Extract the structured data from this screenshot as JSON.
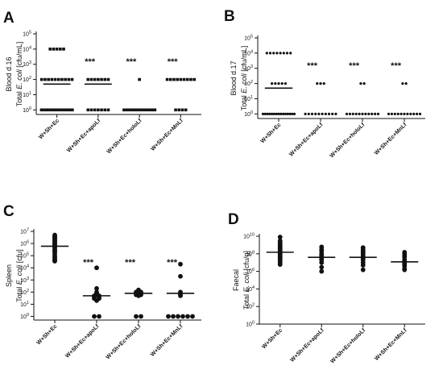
{
  "chart_data": [
    {
      "panel": "A",
      "type": "scatter",
      "ylabel_line1": "Blood d.16",
      "ylabel_line2": "Total E. coli [cfu/mL]",
      "yscale": "log",
      "ylim": [
        0.5,
        100000
      ],
      "ytick_labels": [
        "10⁰",
        "10¹",
        "10²",
        "10³",
        "10⁴",
        "10⁵"
      ],
      "categories": [
        "W+Sh+Ec",
        "W+Sh+Ec+apoLf",
        "W+Sh+Ec+holoLf",
        "W+Sh+Ec+MnLf"
      ],
      "significance": [
        "",
        "***",
        "***",
        "***"
      ],
      "point_style": "square",
      "medians": [
        50,
        50,
        null,
        null
      ],
      "series": [
        {
          "values": [
            10000,
            10000,
            10000,
            10000,
            10000,
            100,
            100,
            100,
            100,
            100,
            100,
            100,
            100,
            100,
            100,
            1,
            1,
            1,
            1,
            1,
            1,
            1,
            1,
            1,
            1,
            1,
            1
          ]
        },
        {
          "values": [
            100,
            100,
            100,
            100,
            100,
            100,
            100,
            1,
            1,
            1,
            1,
            1,
            1,
            1
          ]
        },
        {
          "values": [
            100,
            1,
            1,
            1,
            1,
            1,
            1,
            1,
            1,
            1,
            1,
            1,
            1
          ]
        },
        {
          "values": [
            100,
            100,
            100,
            100,
            100,
            100,
            100,
            100,
            100,
            1,
            1,
            1,
            1
          ]
        }
      ]
    },
    {
      "panel": "B",
      "type": "scatter",
      "ylabel_line1": "Blood d.17",
      "ylabel_line2": "Total E. coli [cfu/mL]",
      "yscale": "log",
      "ylim": [
        0.5,
        100000
      ],
      "ytick_labels": [
        "10⁰",
        "10¹",
        "10²",
        "10³",
        "10⁴",
        "10⁵"
      ],
      "categories": [
        "W+Sh+Ec",
        "W+Sh+Ec+apoLf",
        "W+Sh+Ec+holoLf",
        "W+Sh+Ec+MnLf"
      ],
      "significance": [
        "",
        "***",
        "***",
        "***"
      ],
      "point_style": "dot",
      "medians": [
        50,
        null,
        null,
        null
      ],
      "series": [
        {
          "values": [
            10000,
            10000,
            10000,
            10000,
            10000,
            10000,
            10000,
            10000,
            100,
            100,
            100,
            100,
            100,
            1,
            1,
            1,
            1,
            1,
            1,
            1,
            1,
            1,
            1,
            1,
            1,
            1,
            1,
            1
          ]
        },
        {
          "values": [
            100,
            100,
            100,
            1,
            1,
            1,
            1,
            1,
            1,
            1,
            1,
            1,
            1
          ]
        },
        {
          "values": [
            100,
            100,
            1,
            1,
            1,
            1,
            1,
            1,
            1,
            1,
            1,
            1,
            1
          ]
        },
        {
          "values": [
            100,
            100,
            1,
            1,
            1,
            1,
            1,
            1,
            1,
            1,
            1,
            1,
            1
          ]
        }
      ]
    },
    {
      "panel": "C",
      "type": "scatter",
      "ylabel_line1": "Spleen",
      "ylabel_line2": "Total E. coli [cfu]",
      "yscale": "log",
      "ylim": [
        0.5,
        10000000
      ],
      "ytick_labels": [
        "10⁰",
        "10¹",
        "10²",
        "10³",
        "10⁴",
        "10⁵",
        "10⁶",
        "10⁷"
      ],
      "categories": [
        "W+Sh+Ec",
        "W+Sh+Ec+apoLf",
        "W+Sh+Ec+holoLf",
        "W+Sh+Ec+MnLf"
      ],
      "significance": [
        "",
        "***",
        "***",
        "***"
      ],
      "point_style": "circle",
      "medians": [
        600000,
        50,
        80,
        80
      ],
      "series": [
        {
          "values": [
            5000000,
            4000000,
            3500000,
            3000000,
            2500000,
            2000000,
            1800000,
            1500000,
            1200000,
            1000000,
            800000,
            700000,
            600000,
            500000,
            400000,
            300000,
            250000,
            200000,
            150000,
            100000,
            80000,
            60000,
            50000,
            40000,
            35000
          ]
        },
        {
          "values": [
            10000,
            200,
            100,
            80,
            60,
            50,
            50,
            40,
            40,
            30,
            30,
            20,
            1,
            1
          ]
        },
        {
          "values": [
            150,
            120,
            100,
            100,
            90,
            80,
            80,
            70,
            60,
            60,
            50,
            1,
            1
          ]
        },
        {
          "values": [
            20000,
            2000,
            100,
            80,
            70,
            60,
            50,
            1,
            1,
            1,
            1,
            1,
            1
          ]
        }
      ]
    },
    {
      "panel": "D",
      "type": "scatter",
      "ylabel_line1": "Faecal",
      "ylabel_line2": "Total E. coli [cfu/g]",
      "yscale": "log",
      "ylim": [
        1,
        10000000000
      ],
      "ytick_labels": [
        "10⁰",
        "10²",
        "10⁴",
        "10⁶",
        "10⁸",
        "10¹⁰"
      ],
      "categories": [
        "W+Sh+Ec",
        "W+Sh+Ec+apoLf",
        "W+Sh+Ec+holoLf",
        "W+Sh+Ec+MnLf"
      ],
      "significance": [
        "",
        "",
        "",
        ""
      ],
      "point_style": "circle",
      "medians": [
        150000000,
        40000000,
        40000000,
        12000000
      ],
      "series": [
        {
          "values": [
            8000000000,
            3000000000,
            2000000000,
            1500000000,
            1000000000,
            800000000,
            600000000,
            500000000,
            400000000,
            300000000,
            250000000,
            200000000,
            150000000,
            120000000,
            100000000,
            80000000,
            60000000,
            50000000,
            40000000,
            30000000,
            20000000,
            15000000,
            10000000,
            6000000
          ]
        },
        {
          "values": [
            600000000,
            300000000,
            200000000,
            100000000,
            80000000,
            60000000,
            40000000,
            30000000,
            20000000,
            10000000,
            3000000,
            1000000
          ]
        },
        {
          "values": [
            500000000,
            300000000,
            200000000,
            150000000,
            100000000,
            60000000,
            40000000,
            30000000,
            20000000,
            10000000,
            5000000,
            1500000
          ]
        },
        {
          "values": [
            150000000,
            100000000,
            60000000,
            40000000,
            20000000,
            15000000,
            10000000,
            8000000,
            6000000,
            4000000,
            2000000,
            1500000
          ]
        }
      ]
    }
  ]
}
